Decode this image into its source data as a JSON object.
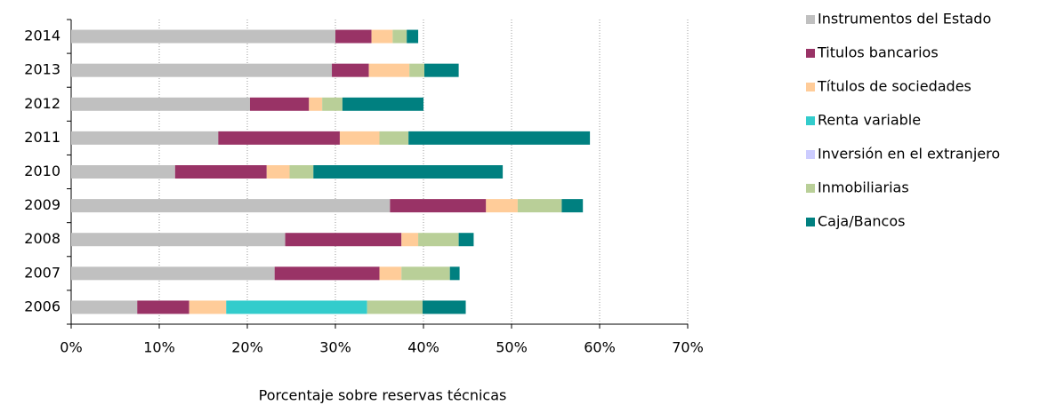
{
  "chart_data": {
    "type": "stacked-bar-horizontal",
    "x_label": "Porcentaje sobre reservas técnicas",
    "categories": [
      "2014",
      "2013",
      "2012",
      "2011",
      "2010",
      "2009",
      "2008",
      "2007",
      "2006"
    ],
    "series": [
      {
        "name": "Instrumentos del Estado",
        "color": "#c0c0c0",
        "values": [
          30.0,
          29.6,
          20.3,
          16.7,
          11.8,
          36.2,
          24.3,
          23.1,
          7.5
        ]
      },
      {
        "name": "Titulos bancarios",
        "color": "#993366",
        "values": [
          4.1,
          4.2,
          6.7,
          13.8,
          10.4,
          10.9,
          13.2,
          11.9,
          5.9
        ]
      },
      {
        "name": "Títulos de sociedades",
        "color": "#ffcc99",
        "values": [
          2.4,
          4.6,
          1.5,
          4.5,
          2.6,
          3.6,
          1.9,
          2.5,
          4.2
        ]
      },
      {
        "name": "Renta variable",
        "color": "#33cccc",
        "values": [
          0,
          0,
          0,
          0,
          0,
          0,
          0,
          0,
          16.0
        ]
      },
      {
        "name": "Inversión en el extranjero",
        "color": "#ccccff",
        "values": [
          0,
          0,
          0,
          0,
          0,
          0,
          0,
          0,
          0
        ]
      },
      {
        "name": "Inmobiliarias",
        "color": "#b9cf98",
        "values": [
          1.6,
          1.7,
          2.3,
          3.3,
          2.7,
          5.0,
          4.6,
          5.5,
          6.3
        ]
      },
      {
        "name": "Caja/Bancos",
        "color": "#008080",
        "values": [
          1.3,
          3.9,
          9.2,
          20.6,
          21.5,
          2.4,
          1.7,
          1.1,
          4.9
        ]
      }
    ],
    "xlim": [
      0,
      70
    ],
    "xticks": [
      {
        "value": 0,
        "label": "0%"
      },
      {
        "value": 10,
        "label": "10%"
      },
      {
        "value": 20,
        "label": "20%"
      },
      {
        "value": 30,
        "label": "30%"
      },
      {
        "value": 40,
        "label": "40%"
      },
      {
        "value": 50,
        "label": "50%"
      },
      {
        "value": 60,
        "label": "60%"
      },
      {
        "value": 70,
        "label": "70%"
      }
    ],
    "grid": true,
    "legend": "right"
  }
}
